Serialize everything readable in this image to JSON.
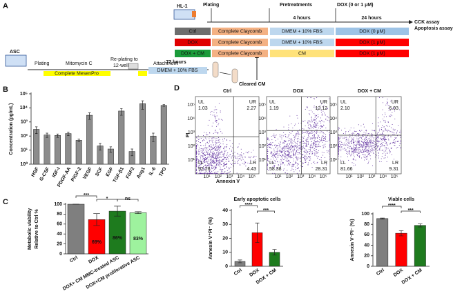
{
  "panels": {
    "a": "A",
    "b": "B",
    "c": "C",
    "d": "D"
  },
  "diagram": {
    "asc": "ASC",
    "plating": "Plating",
    "mitomycin": "Mitomycin C",
    "replating": [
      "Re-plating to",
      "12-well"
    ],
    "attachment": "Attachment",
    "mesenpro": "Complete MesenPro",
    "hours72": "72 hours",
    "dmem": "DMEM + 10% FBS",
    "cleared": "Cleared CM",
    "hl1": "HL-1",
    "plating2": "Plating",
    "pretreatments": "Pretreatments",
    "dox": "DOX (0 or 1 μM)",
    "hours4": "4 hours",
    "hours24": "24 hours",
    "assays": [
      "CCK assay",
      "Apoptosis assay"
    ],
    "rows": [
      [
        "Ctrl",
        "Complete Claycomb",
        "DMEM + 10% FBS",
        "DOX (0 μM)"
      ],
      [
        "DOX",
        "Complete Claycomb",
        "DMEM + 10% FBS",
        "DOX (1 μM)"
      ],
      [
        "DOX + CM",
        "Complete Claycomb",
        "CM",
        "DOX (1 μM)"
      ]
    ]
  },
  "flow": {
    "x_label": "Annexin V",
    "y_label": "PI",
    "ticks": [
      "10¹",
      "10²",
      "10³",
      "10⁴",
      "10⁵"
    ],
    "plots": [
      {
        "title": "Ctrl",
        "quadrants": [
          [
            "UL",
            "1.03"
          ],
          [
            "UR",
            "2.27"
          ],
          [
            "LL",
            "92.28"
          ],
          [
            "LR",
            "4.43"
          ]
        ]
      },
      {
        "title": "DOX",
        "quadrants": [
          [
            "UL",
            "1.19"
          ],
          [
            "UR",
            "12.12"
          ],
          [
            "LL",
            "58.38"
          ],
          [
            "LR",
            "28.31"
          ]
        ]
      },
      {
        "title": "DOX + CM",
        "quadrants": [
          [
            "UL",
            "2.10"
          ],
          [
            "UR",
            "6.93"
          ],
          [
            "LL",
            "81.66"
          ],
          [
            "LR",
            "9.31"
          ]
        ]
      }
    ]
  },
  "chart_data": [
    {
      "type": "bar",
      "y_label": [
        "Concentration (pg/mL)"
      ],
      "color": "#8c8c8c",
      "log": true,
      "categories": [
        "HGF",
        "G-CSF",
        "IGF-I",
        "PDGF-AA",
        "PlGF-2",
        "VEGF",
        "SCF",
        "EGF",
        "TGF-β1",
        "FGF2",
        "Ang1",
        "IL-6",
        "TPO"
      ],
      "values": [
        300,
        120,
        110,
        150,
        50,
        3000,
        20,
        12,
        6000,
        8,
        20000,
        100,
        15000
      ],
      "errors": [
        150,
        40,
        30,
        40,
        10,
        1500,
        10,
        5,
        3000,
        4,
        12000,
        60,
        2000
      ],
      "ylim": [
        1,
        100000
      ],
      "yticks": [
        {
          "value": 1,
          "label": "10⁰"
        },
        {
          "value": 10,
          "label": "10¹"
        },
        {
          "value": 100,
          "label": "10²"
        },
        {
          "value": 1000,
          "label": "10³"
        },
        {
          "value": 10000,
          "label": "10⁴"
        },
        {
          "value": 100000,
          "label": "10⁵"
        }
      ]
    },
    {
      "type": "bar",
      "y_label": [
        "Metabolic viability",
        "Relative to Ctrl %"
      ],
      "colors": [
        "#7f7f7f",
        "#ff0000",
        "#1e7b1e",
        "#9ef29e"
      ],
      "categories": [
        "Ctrl",
        "DOX",
        "DOX+ CM MMC-treated ASC",
        "DOX+CM proliferative ASC"
      ],
      "values": [
        100,
        69,
        86,
        83
      ],
      "value_labels": [
        null,
        "69%",
        "86%",
        "83%"
      ],
      "errors": [
        0,
        12,
        10,
        2
      ],
      "ylim": [
        0,
        100
      ],
      "yticks": [
        0,
        20,
        40,
        60,
        80,
        100
      ],
      "annotations": [
        "***",
        "*",
        "ns"
      ]
    },
    {
      "type": "bar",
      "title": "Early apoptotic cells",
      "y_label": [
        "Annexin V⁺PI⁻ (%)"
      ],
      "colors": [
        "#7f7f7f",
        "#ff0000",
        "#1e7b1e"
      ],
      "categories": [
        "Ctrl",
        "DOX",
        "DOX + CM"
      ],
      "values": [
        3.5,
        24,
        10
      ],
      "errors": [
        1,
        7,
        2
      ],
      "ylim": [
        0,
        40
      ],
      "yticks": [
        0,
        10,
        20,
        30,
        40
      ],
      "annotations": [
        "****",
        "***"
      ]
    },
    {
      "type": "bar",
      "title": "Viable cells",
      "y_label": [
        "Annexin V⁻PI⁻ (%)"
      ],
      "colors": [
        "#7f7f7f",
        "#ff0000",
        "#1e7b1e"
      ],
      "categories": [
        "Ctrl",
        "DOX",
        "DOX + CM"
      ],
      "values": [
        91,
        63,
        78
      ],
      "errors": [
        1,
        5,
        3
      ],
      "ylim": [
        0,
        100
      ],
      "yticks": [
        0,
        20,
        40,
        60,
        80,
        100
      ],
      "annotations": [
        "****",
        "***"
      ]
    }
  ]
}
